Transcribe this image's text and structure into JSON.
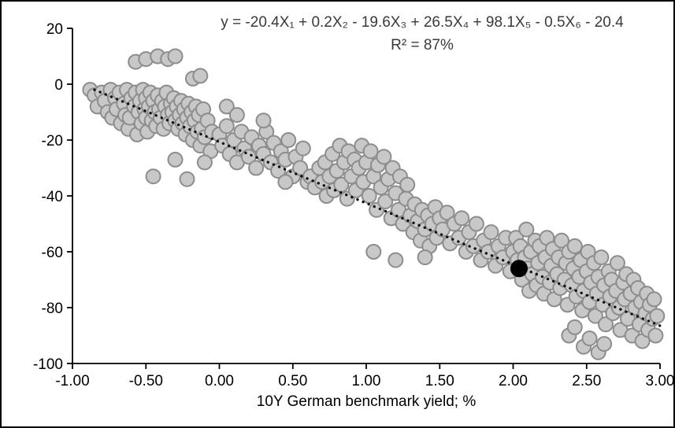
{
  "figure": {
    "background": "#ffffff",
    "border_color": "#000000"
  },
  "chart_data": {
    "type": "scatter",
    "equation_line1": "y = -20.4X₁ + 0.2X₂ - 19.6X₃ + 26.5X₄ + 98.1X₅ - 0.5X₆ - 20.4",
    "equation_line2": "R² = 87%",
    "xlabel": "10Y German benchmark yield; %",
    "xlim": [
      -1.0,
      3.0
    ],
    "ylim": [
      -100,
      20
    ],
    "x_ticks": [
      "-1.00",
      "-0.50",
      "0.00",
      "0.50",
      "1.00",
      "1.50",
      "2.00",
      "2.50",
      "3.00"
    ],
    "x_tick_values": [
      -1.0,
      -0.5,
      0.0,
      0.5,
      1.0,
      1.5,
      2.0,
      2.5,
      3.0
    ],
    "y_ticks": [
      "20",
      "0",
      "-20",
      "-40",
      "-60",
      "-80",
      "-100"
    ],
    "y_tick_values": [
      20,
      0,
      -20,
      -40,
      -60,
      -80,
      -100
    ],
    "grid": false,
    "legend": "none",
    "point_style": {
      "fill": "#c8c8c8",
      "stroke": "#8d8d8d",
      "radius": 9,
      "stroke_width": 2
    },
    "trendline": {
      "x1": -0.85,
      "y1": -2.0,
      "x2": 3.0,
      "y2": -86.5,
      "style": "dotted",
      "color": "#111111"
    },
    "highlight_point": {
      "x": 2.04,
      "y": -66,
      "color": "#000000",
      "radius": 10
    },
    "points": [
      [
        -0.88,
        -2
      ],
      [
        -0.85,
        -4
      ],
      [
        -0.83,
        -8
      ],
      [
        -0.8,
        -3
      ],
      [
        -0.78,
        -6
      ],
      [
        -0.76,
        -10
      ],
      [
        -0.74,
        -2
      ],
      [
        -0.73,
        -12
      ],
      [
        -0.71,
        -5
      ],
      [
        -0.7,
        -9
      ],
      [
        -0.68,
        -3
      ],
      [
        -0.67,
        -14
      ],
      [
        -0.65,
        -7
      ],
      [
        -0.64,
        -11
      ],
      [
        -0.63,
        -2
      ],
      [
        -0.62,
        -16
      ],
      [
        -0.61,
        -12
      ],
      [
        -0.6,
        -5
      ],
      [
        -0.58,
        -8
      ],
      [
        -0.57,
        -3
      ],
      [
        -0.56,
        -18
      ],
      [
        -0.55,
        -10
      ],
      [
        -0.54,
        -6
      ],
      [
        -0.53,
        -14
      ],
      [
        -0.52,
        -2
      ],
      [
        -0.51,
        -9
      ],
      [
        -0.5,
        -12
      ],
      [
        -0.5,
        -5
      ],
      [
        -0.49,
        -17
      ],
      [
        -0.48,
        -8
      ],
      [
        -0.47,
        -3
      ],
      [
        -0.46,
        -13
      ],
      [
        -0.45,
        -6
      ],
      [
        -0.44,
        -10
      ],
      [
        -0.43,
        -15
      ],
      [
        -0.42,
        -4
      ],
      [
        -0.41,
        -9
      ],
      [
        -0.4,
        -12
      ],
      [
        -0.39,
        -6
      ],
      [
        -0.38,
        -16
      ],
      [
        -0.37,
        -8
      ],
      [
        -0.36,
        -3
      ],
      [
        -0.35,
        -11
      ],
      [
        -0.34,
        -14
      ],
      [
        -0.33,
        -7
      ],
      [
        -0.32,
        -10
      ],
      [
        -0.31,
        -5
      ],
      [
        -0.3,
        -13
      ],
      [
        -0.29,
        -8
      ],
      [
        -0.28,
        -16
      ],
      [
        -0.27,
        -11
      ],
      [
        -0.26,
        -6
      ],
      [
        -0.25,
        -14
      ],
      [
        -0.24,
        -9
      ],
      [
        -0.23,
        -18
      ],
      [
        -0.22,
        -12
      ],
      [
        -0.21,
        -7
      ],
      [
        -0.2,
        -15
      ],
      [
        -0.19,
        -10
      ],
      [
        -0.18,
        -20
      ],
      [
        -0.17,
        -13
      ],
      [
        -0.16,
        -8
      ],
      [
        -0.15,
        -17
      ],
      [
        -0.14,
        -11
      ],
      [
        -0.13,
        -22
      ],
      [
        -0.12,
        -16
      ],
      [
        -0.11,
        -9
      ],
      [
        -0.1,
        -19
      ],
      [
        -0.08,
        -13
      ],
      [
        -0.06,
        -24
      ],
      [
        -0.05,
        -17
      ],
      [
        -0.57,
        8
      ],
      [
        -0.5,
        9
      ],
      [
        -0.42,
        10
      ],
      [
        -0.35,
        9
      ],
      [
        -0.3,
        10
      ],
      [
        -0.18,
        2
      ],
      [
        -0.13,
        3
      ],
      [
        -0.45,
        -33
      ],
      [
        -0.22,
        -34
      ],
      [
        -0.3,
        -27
      ],
      [
        -0.1,
        -28
      ],
      [
        0.0,
        -18
      ],
      [
        0.02,
        -22
      ],
      [
        0.05,
        -15
      ],
      [
        0.07,
        -25
      ],
      [
        0.1,
        -20
      ],
      [
        0.12,
        -28
      ],
      [
        0.15,
        -17
      ],
      [
        0.17,
        -23
      ],
      [
        0.2,
        -26
      ],
      [
        0.22,
        -19
      ],
      [
        0.25,
        -30
      ],
      [
        0.27,
        -22
      ],
      [
        0.3,
        -25
      ],
      [
        0.32,
        -17
      ],
      [
        0.35,
        -28
      ],
      [
        0.37,
        -21
      ],
      [
        0.4,
        -31
      ],
      [
        0.42,
        -24
      ],
      [
        0.45,
        -27
      ],
      [
        0.47,
        -20
      ],
      [
        0.5,
        -33
      ],
      [
        0.52,
        -26
      ],
      [
        0.55,
        -30
      ],
      [
        0.57,
        -23
      ],
      [
        0.6,
        -35
      ],
      [
        0.05,
        -8
      ],
      [
        0.12,
        -11
      ],
      [
        0.3,
        -13
      ],
      [
        0.45,
        -35
      ],
      [
        0.62,
        -33
      ],
      [
        0.65,
        -37
      ],
      [
        0.68,
        -30
      ],
      [
        0.7,
        -35
      ],
      [
        0.72,
        -28
      ],
      [
        0.73,
        -40
      ],
      [
        0.75,
        -33
      ],
      [
        0.77,
        -25
      ],
      [
        0.78,
        -38
      ],
      [
        0.8,
        -31
      ],
      [
        0.82,
        -22
      ],
      [
        0.83,
        -36
      ],
      [
        0.85,
        -28
      ],
      [
        0.87,
        -41
      ],
      [
        0.88,
        -24
      ],
      [
        0.9,
        -33
      ],
      [
        0.92,
        -27
      ],
      [
        0.93,
        -38
      ],
      [
        0.95,
        -30
      ],
      [
        0.97,
        -22
      ],
      [
        0.98,
        -35
      ],
      [
        1.0,
        -28
      ],
      [
        1.02,
        -40
      ],
      [
        1.03,
        -24
      ],
      [
        1.05,
        -33
      ],
      [
        1.07,
        -45
      ],
      [
        1.08,
        -29
      ],
      [
        1.1,
        -37
      ],
      [
        1.12,
        -26
      ],
      [
        1.13,
        -42
      ],
      [
        1.15,
        -34
      ],
      [
        1.17,
        -48
      ],
      [
        1.18,
        -30
      ],
      [
        1.2,
        -39
      ],
      [
        1.22,
        -45
      ],
      [
        1.23,
        -33
      ],
      [
        1.25,
        -50
      ],
      [
        1.27,
        -41
      ],
      [
        1.28,
        -36
      ],
      [
        1.3,
        -47
      ],
      [
        1.32,
        -53
      ],
      [
        1.33,
        -43
      ],
      [
        1.35,
        -49
      ],
      [
        1.37,
        -56
      ],
      [
        1.38,
        -45
      ],
      [
        1.4,
        -52
      ],
      [
        1.42,
        -47
      ],
      [
        1.43,
        -58
      ],
      [
        1.45,
        -50
      ],
      [
        1.47,
        -44
      ],
      [
        1.48,
        -55
      ],
      [
        1.5,
        -48
      ],
      [
        1.05,
        -60
      ],
      [
        1.2,
        -63
      ],
      [
        1.4,
        -62
      ],
      [
        1.52,
        -52
      ],
      [
        1.55,
        -46
      ],
      [
        1.57,
        -57
      ],
      [
        1.6,
        -50
      ],
      [
        1.63,
        -55
      ],
      [
        1.65,
        -48
      ],
      [
        1.68,
        -60
      ],
      [
        1.7,
        -53
      ],
      [
        1.73,
        -58
      ],
      [
        1.75,
        -50
      ],
      [
        1.78,
        -63
      ],
      [
        1.8,
        -56
      ],
      [
        1.83,
        -60
      ],
      [
        1.85,
        -53
      ],
      [
        1.88,
        -65
      ],
      [
        1.9,
        -58
      ],
      [
        1.93,
        -62
      ],
      [
        1.95,
        -55
      ],
      [
        1.98,
        -67
      ],
      [
        2.0,
        -60
      ],
      [
        2.02,
        -55
      ],
      [
        2.03,
        -63
      ],
      [
        2.05,
        -58
      ],
      [
        2.06,
        -70
      ],
      [
        2.08,
        -62
      ],
      [
        2.09,
        -52
      ],
      [
        2.1,
        -66
      ],
      [
        2.11,
        -74
      ],
      [
        2.12,
        -60
      ],
      [
        2.13,
        -68
      ],
      [
        2.15,
        -56
      ],
      [
        2.16,
        -72
      ],
      [
        2.17,
        -64
      ],
      [
        2.18,
        -58
      ],
      [
        2.2,
        -69
      ],
      [
        2.21,
        -75
      ],
      [
        2.22,
        -62
      ],
      [
        2.23,
        -55
      ],
      [
        2.25,
        -71
      ],
      [
        2.26,
        -65
      ],
      [
        2.27,
        -59
      ],
      [
        2.28,
        -77
      ],
      [
        2.3,
        -68
      ],
      [
        2.31,
        -62
      ],
      [
        2.32,
        -73
      ],
      [
        2.33,
        -56
      ],
      [
        2.35,
        -70
      ],
      [
        2.36,
        -64
      ],
      [
        2.37,
        -79
      ],
      [
        2.38,
        -60
      ],
      [
        2.4,
        -72
      ],
      [
        2.41,
        -66
      ],
      [
        2.42,
        -58
      ],
      [
        2.43,
        -76
      ],
      [
        2.45,
        -69
      ],
      [
        2.46,
        -63
      ],
      [
        2.47,
        -81
      ],
      [
        2.48,
        -74
      ],
      [
        2.5,
        -67
      ],
      [
        2.51,
        -60
      ],
      [
        2.52,
        -78
      ],
      [
        2.53,
        -71
      ],
      [
        2.55,
        -64
      ],
      [
        2.56,
        -83
      ],
      [
        2.57,
        -75
      ],
      [
        2.58,
        -69
      ],
      [
        2.6,
        -62
      ],
      [
        2.61,
        -79
      ],
      [
        2.62,
        -72
      ],
      [
        2.63,
        -86
      ],
      [
        2.65,
        -67
      ],
      [
        2.66,
        -76
      ],
      [
        2.67,
        -70
      ],
      [
        2.68,
        -82
      ],
      [
        2.7,
        -74
      ],
      [
        2.71,
        -64
      ],
      [
        2.72,
        -80
      ],
      [
        2.73,
        -88
      ],
      [
        2.75,
        -71
      ],
      [
        2.76,
        -77
      ],
      [
        2.77,
        -68
      ],
      [
        2.78,
        -84
      ],
      [
        2.8,
        -75
      ],
      [
        2.81,
        -90
      ],
      [
        2.82,
        -70
      ],
      [
        2.83,
        -80
      ],
      [
        2.85,
        -73
      ],
      [
        2.86,
        -86
      ],
      [
        2.87,
        -78
      ],
      [
        2.88,
        -92
      ],
      [
        2.9,
        -82
      ],
      [
        2.91,
        -75
      ],
      [
        2.92,
        -88
      ],
      [
        2.93,
        -79
      ],
      [
        2.95,
        -84
      ],
      [
        2.96,
        -77
      ],
      [
        2.97,
        -90
      ],
      [
        2.98,
        -83
      ],
      [
        2.38,
        -90
      ],
      [
        2.48,
        -94
      ],
      [
        2.58,
        -96
      ],
      [
        2.42,
        -87
      ],
      [
        2.52,
        -91
      ],
      [
        2.62,
        -93
      ]
    ]
  }
}
